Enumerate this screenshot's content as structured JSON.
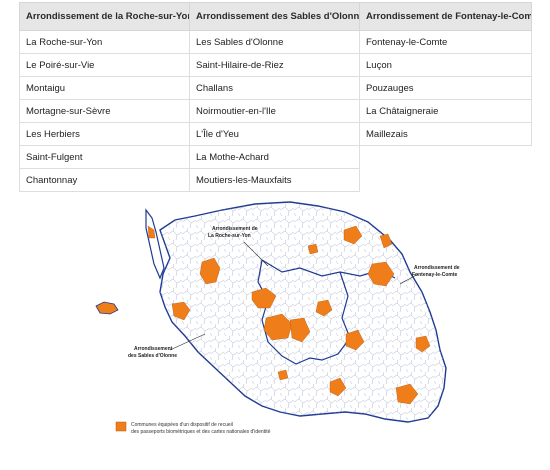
{
  "table": {
    "headers": [
      "Arrondissement de la Roche-sur-Yon",
      "Arrondissement des Sables d'Olonne",
      "Arrondissement de Fontenay-le-Comte"
    ],
    "rows": [
      [
        "La Roche-sur-Yon",
        "Les Sables d'Olonne",
        "Fontenay-le-Comte"
      ],
      [
        "Le Poiré-sur-Vie",
        "Saint-Hilaire-de-Riez",
        "Luçon"
      ],
      [
        "Montaigu",
        "Challans",
        "Pouzauges"
      ],
      [
        "Mortagne-sur-Sèvre",
        "Noirmoutier-en-l'Ile",
        "La Châtaigneraie"
      ],
      [
        "Les Herbiers",
        "L'Île d'Yeu",
        "Maillezais"
      ],
      [
        "Saint-Fulgent",
        "La Mothe-Achard",
        ""
      ],
      [
        "Chantonnay",
        "Moutiers-les-Mauxfaits",
        ""
      ]
    ]
  },
  "map": {
    "labels": {
      "roche_line1": "Arrondissement de",
      "roche_line2": "La Roche-sur-Yon",
      "fontenay_line1": "Arrondissement de",
      "fontenay_line2": "Fontenay-le-Comte",
      "sables_line1": "Arrondissement",
      "sables_line2": "des Sables d'Olonne"
    },
    "legend": {
      "line1": "Communes équipées d'un dispositif de recueil",
      "line2": "des passeports biométriques et des cartes nationales d'identité"
    },
    "colors": {
      "equipped": "#ef7d1a",
      "border": "#1f3a93",
      "commune_line": "#9aa4c8"
    }
  }
}
